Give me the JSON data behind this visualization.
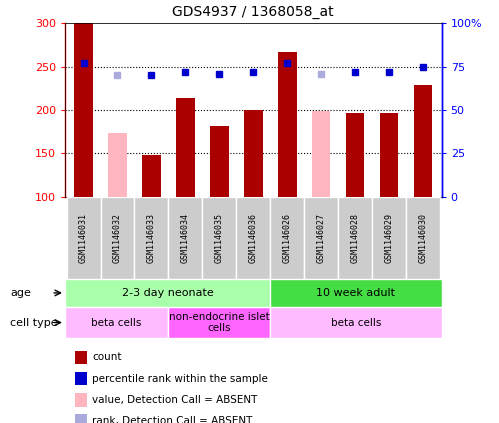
{
  "title": "GDS4937 / 1368058_at",
  "samples": [
    "GSM1146031",
    "GSM1146032",
    "GSM1146033",
    "GSM1146034",
    "GSM1146035",
    "GSM1146036",
    "GSM1146026",
    "GSM1146027",
    "GSM1146028",
    "GSM1146029",
    "GSM1146030"
  ],
  "count_values": [
    300,
    null,
    148,
    214,
    182,
    200,
    267,
    null,
    196,
    196,
    229
  ],
  "count_absent_values": [
    null,
    174,
    null,
    null,
    null,
    null,
    null,
    199,
    null,
    null,
    null
  ],
  "percentile_values": [
    77,
    null,
    70,
    72,
    71,
    72,
    77,
    null,
    72,
    72,
    75
  ],
  "percentile_absent_values": [
    null,
    70,
    null,
    null,
    null,
    null,
    null,
    71,
    null,
    null,
    null
  ],
  "ylim_left": [
    100,
    300
  ],
  "ylim_right": [
    0,
    100
  ],
  "yticks_left": [
    100,
    150,
    200,
    250,
    300
  ],
  "yticks_right": [
    0,
    25,
    50,
    75,
    100
  ],
  "ytick_labels_left": [
    "100",
    "150",
    "200",
    "250",
    "300"
  ],
  "ytick_labels_right": [
    "0",
    "25",
    "50",
    "75",
    "100%"
  ],
  "grid_values": [
    150,
    200,
    250
  ],
  "bar_color": "#AA0000",
  "bar_absent_color": "#FFB6C1",
  "dot_color": "#0000CC",
  "dot_absent_color": "#AAAADD",
  "age_groups": [
    {
      "label": "2-3 day neonate",
      "start": 0,
      "end": 6,
      "color": "#AAFFAA"
    },
    {
      "label": "10 week adult",
      "start": 6,
      "end": 11,
      "color": "#44DD44"
    }
  ],
  "cell_type_groups": [
    {
      "label": "beta cells",
      "start": 0,
      "end": 3,
      "color": "#FFBBFF"
    },
    {
      "label": "non-endocrine islet\ncells",
      "start": 3,
      "end": 6,
      "color": "#FF66FF"
    },
    {
      "label": "beta cells",
      "start": 6,
      "end": 11,
      "color": "#FFBBFF"
    }
  ],
  "legend_items": [
    {
      "label": "count",
      "color": "#AA0000"
    },
    {
      "label": "percentile rank within the sample",
      "color": "#0000CC"
    },
    {
      "label": "value, Detection Call = ABSENT",
      "color": "#FFB6C1"
    },
    {
      "label": "rank, Detection Call = ABSENT",
      "color": "#AAAADD"
    }
  ],
  "fig_width": 4.99,
  "fig_height": 4.23,
  "dpi": 100
}
